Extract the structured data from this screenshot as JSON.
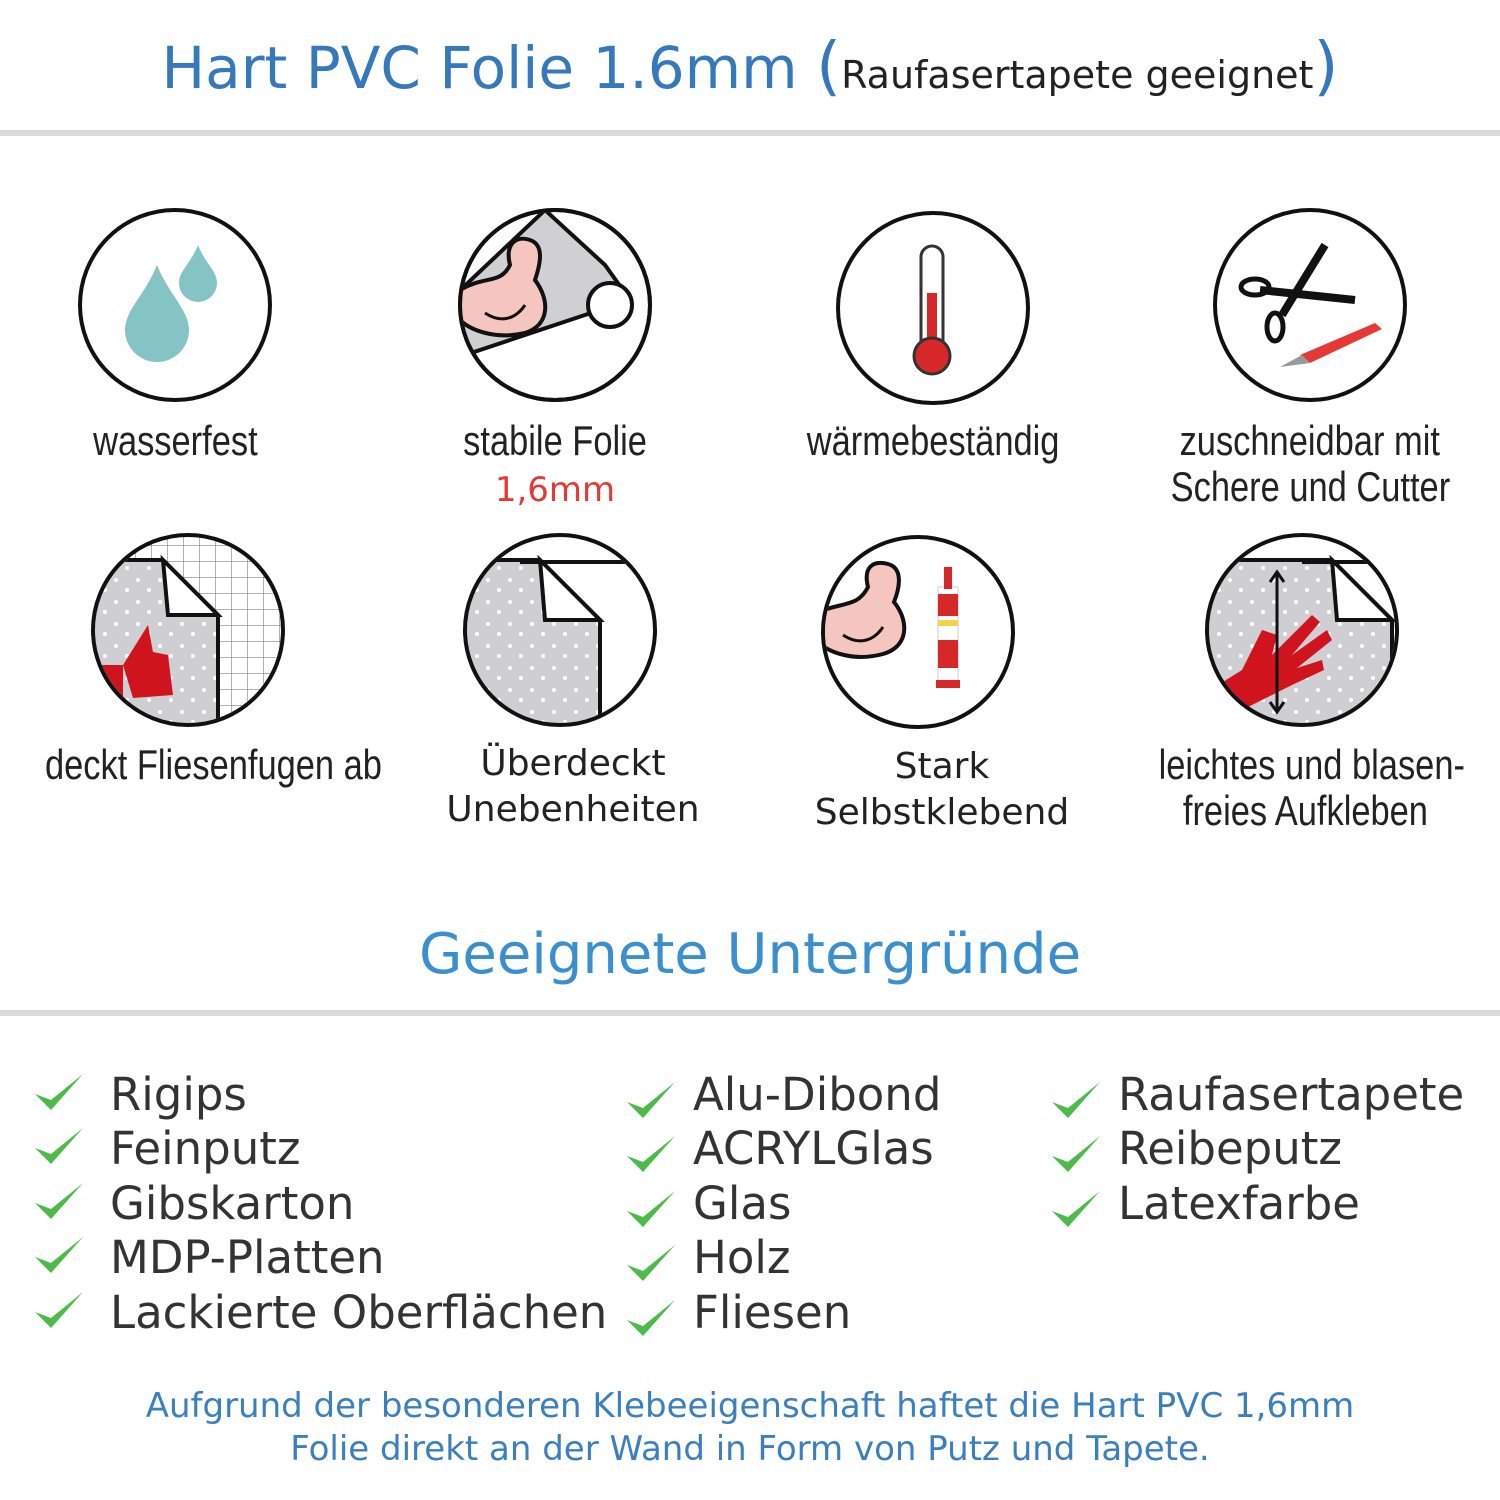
{
  "header": {
    "title": "Hart PVC Folie 1.6mm",
    "open_paren": "(",
    "subtitle": "Raufasertapete geeignet",
    "close_paren": ")"
  },
  "features": [
    {
      "icon": "water-drops-icon",
      "label": "wasserfest"
    },
    {
      "icon": "flexed-arm-foil-roll-icon",
      "label": "stabile Folie",
      "sublabel": "1,6mm"
    },
    {
      "icon": "thermometer-icon",
      "label": "wärmebeständig"
    },
    {
      "icon": "scissors-cutter-icon",
      "label": "zuschneidbar mit",
      "label2": "Schere und Cutter"
    },
    {
      "icon": "thumbs-up-tiles-icon",
      "label": "deckt Fliesenfugen ab"
    },
    {
      "icon": "foil-sheet-icon",
      "label": "Überdeckt",
      "label2": "Unebenheiten"
    },
    {
      "icon": "arm-glue-tube-icon",
      "label": "Stark",
      "label2": "Selbstklebend"
    },
    {
      "icon": "hand-smoothing-icon",
      "label": "leichtes und blasen-",
      "label2": "freies Aufkleben"
    }
  ],
  "surfaces": {
    "title": "Geeignete Untergründe",
    "columns": [
      [
        "Rigips",
        "Feinputz",
        "Gibskarton",
        "MDP-Platten",
        "Lackierte Oberflächen"
      ],
      [
        "Alu-Dibond",
        "ACRYLGlas",
        "Glas",
        "Holz",
        "Fliesen"
      ],
      [
        "Raufasertapete",
        "Reibeputz",
        "Latexfarbe"
      ]
    ],
    "check_icon": "check-icon"
  },
  "footer": {
    "line1": "Aufgrund der besonderen Klebeeigenschaft haftet die Hart PVC 1,6mm",
    "line2": "Folie direkt an der Wand in Form von Putz und Tapete."
  },
  "colors": {
    "title_blue": "#3578bd",
    "section_blue": "#3a8fd0",
    "check_green": "#4cbb4a",
    "accent_red": "#e53935",
    "drop_teal": "#85c4c4"
  }
}
